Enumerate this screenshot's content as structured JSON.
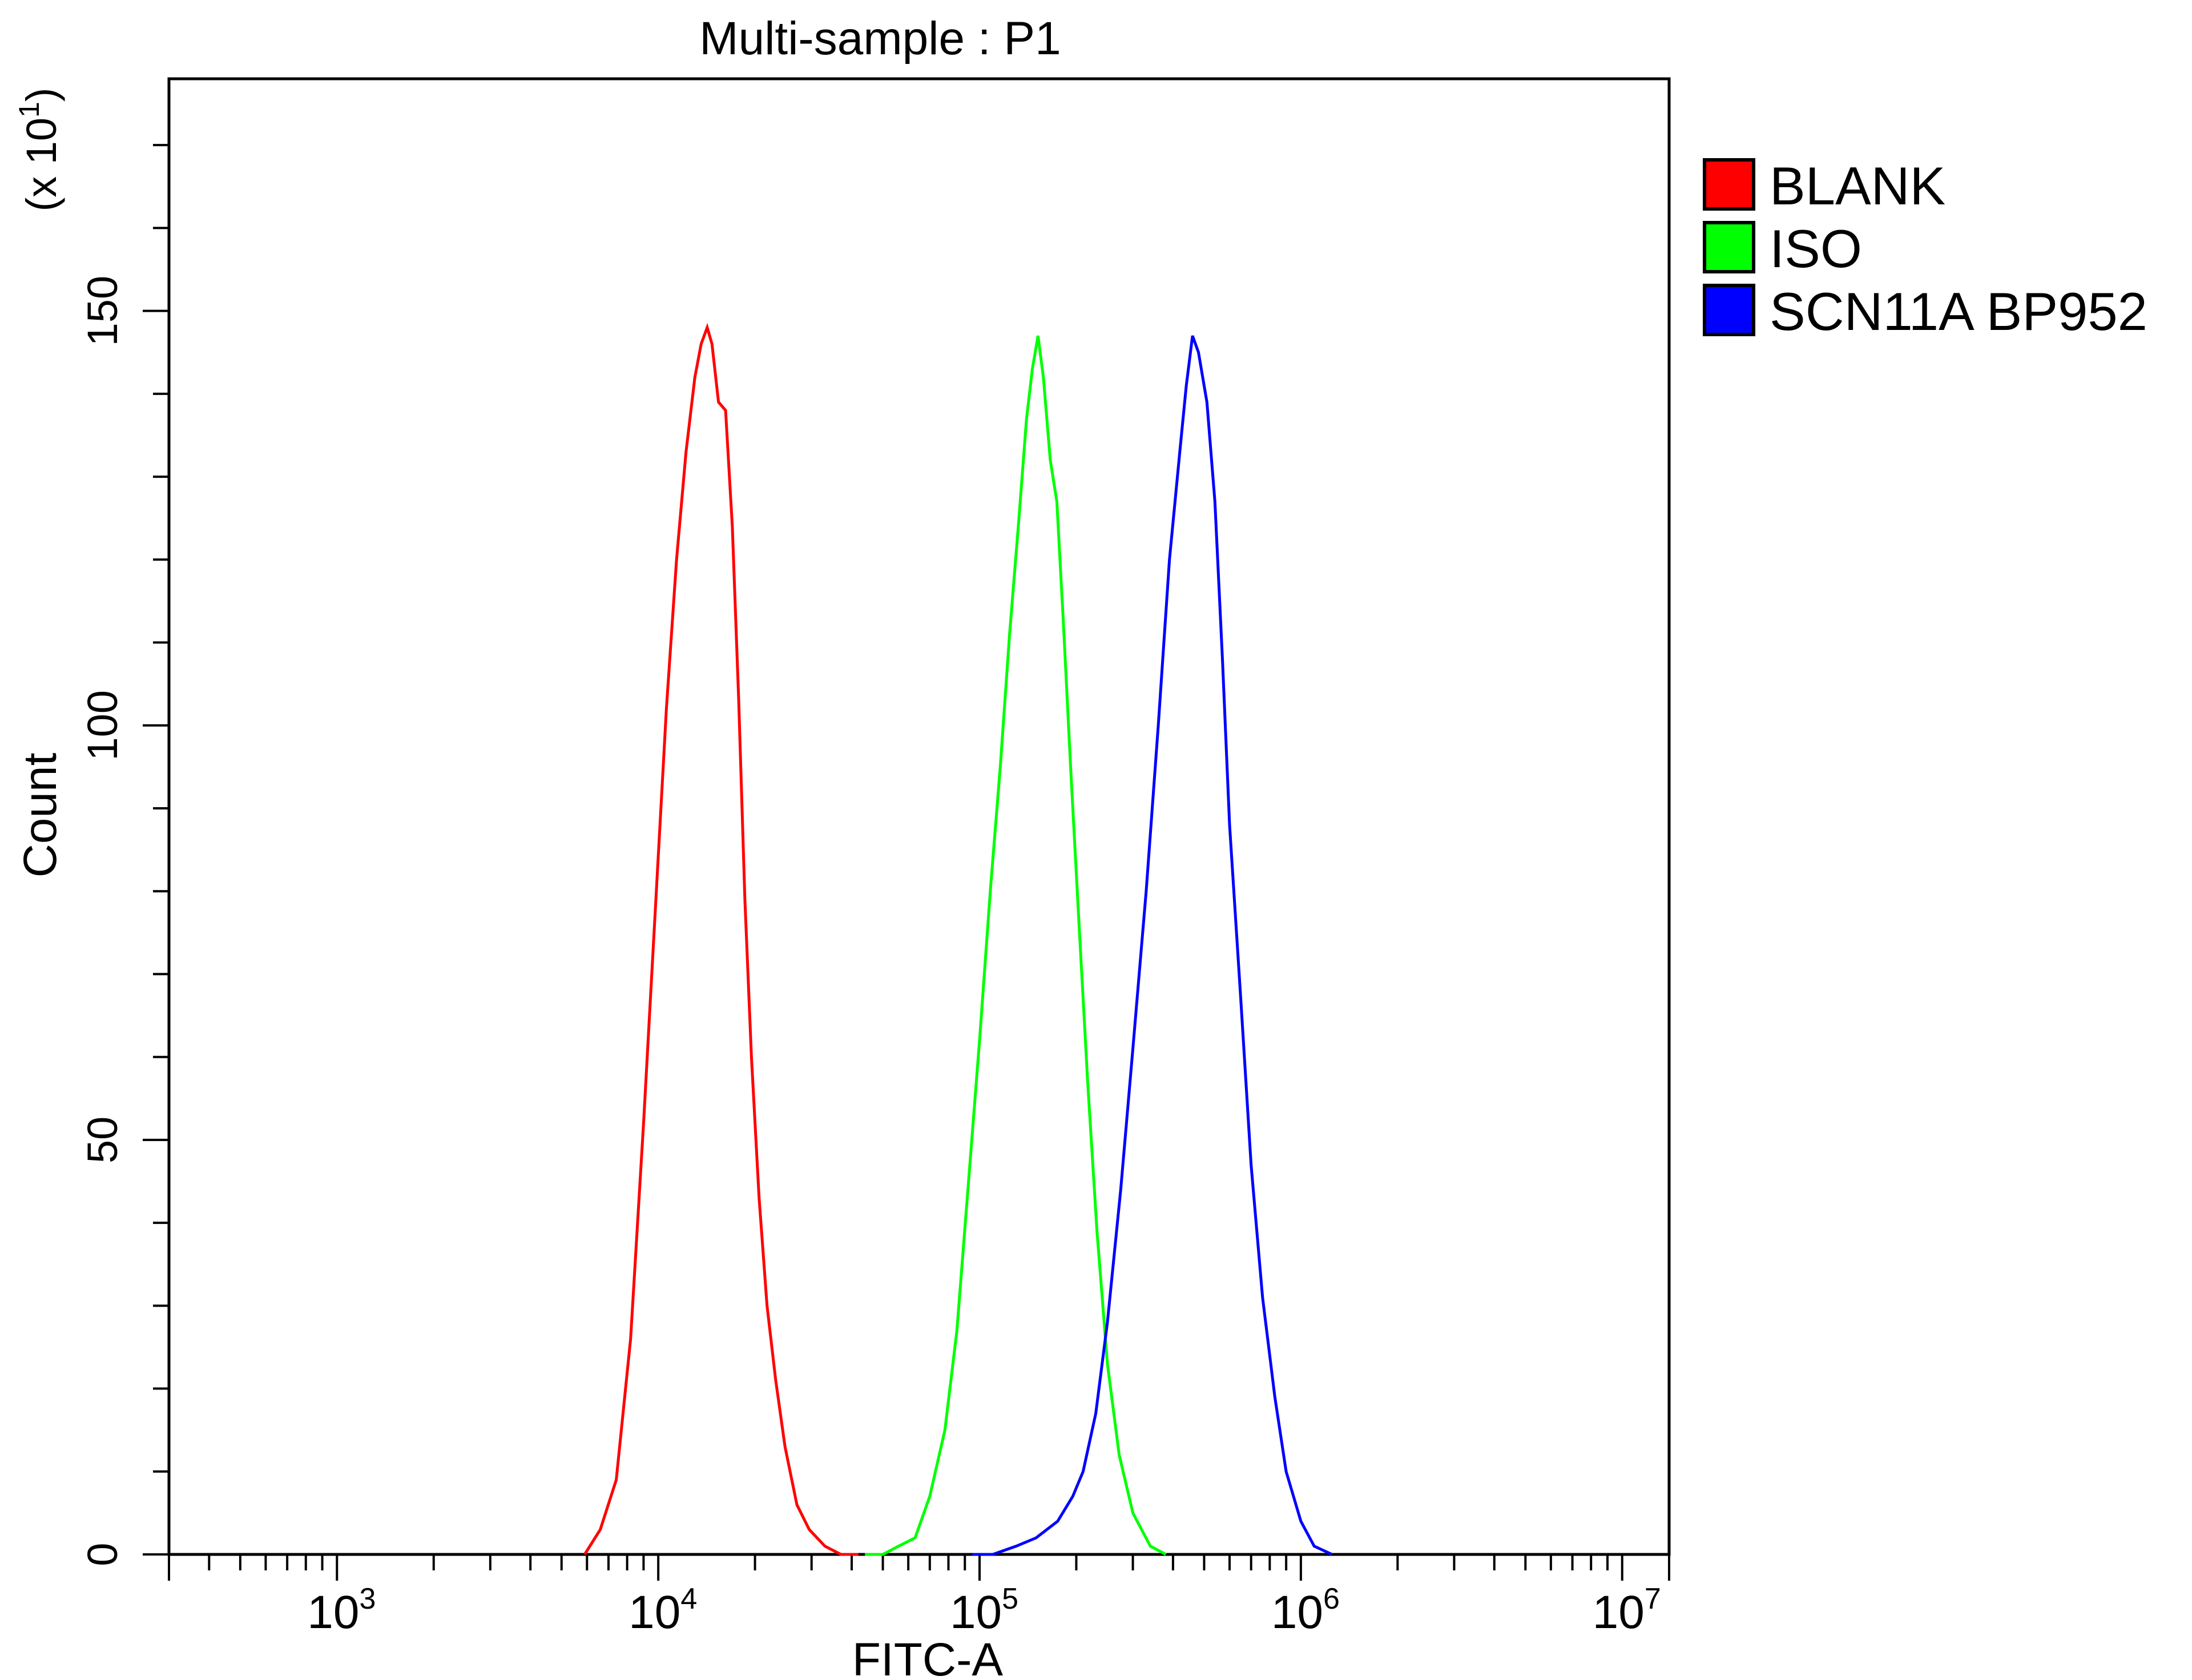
{
  "chart_data": {
    "type": "line",
    "title": "Multi-sample : P1",
    "xlabel": "FITC-A",
    "ylabel": "Count",
    "y_scale_note": {
      "prefix": "(x 10",
      "exponent": "1",
      "suffix": ")"
    },
    "x_scale": "log",
    "xlim": [
      300,
      14000000
    ],
    "ylim": [
      0,
      178
    ],
    "x_ticks": [
      {
        "base": "10",
        "exp": "3",
        "value": 1000
      },
      {
        "base": "10",
        "exp": "4",
        "value": 10000
      },
      {
        "base": "10",
        "exp": "5",
        "value": 100000
      },
      {
        "base": "10",
        "exp": "6",
        "value": 1000000
      },
      {
        "base": "10",
        "exp": "7",
        "value": 10000000
      }
    ],
    "y_ticks": [
      {
        "label": "0",
        "value": 0
      },
      {
        "label": "50",
        "value": 50
      },
      {
        "label": "100",
        "value": 100
      },
      {
        "label": "150",
        "value": 150
      }
    ],
    "grid": false,
    "legend_position": "right",
    "series": [
      {
        "name": "BLANK",
        "color": "#ff0000",
        "x": [
          5900,
          6600,
          7400,
          8200,
          9000,
          9800,
          10600,
          11400,
          12200,
          13000,
          13600,
          14200,
          14700,
          15400,
          16200,
          17000,
          17800,
          18600,
          19500,
          20600,
          21800,
          23200,
          24800,
          27000,
          29500,
          33000,
          37000,
          42000
        ],
        "y": [
          0,
          3,
          9,
          26,
          52,
          78,
          102,
          120,
          133,
          142,
          146,
          148,
          146,
          139,
          138,
          124,
          103,
          79,
          60,
          43,
          30,
          21,
          13,
          6,
          3,
          1,
          0,
          0
        ]
      },
      {
        "name": "ISO",
        "color": "#00ff00",
        "x": [
          44000,
          50000,
          56000,
          63000,
          70000,
          78000,
          85000,
          92000,
          100000,
          108000,
          116000,
          124000,
          132000,
          140000,
          146000,
          152000,
          158000,
          166000,
          174000,
          182000,
          192000,
          204000,
          217000,
          232000,
          250000,
          272000,
          300000,
          340000,
          380000
        ],
        "y": [
          0,
          0,
          1,
          2,
          7,
          15,
          27,
          44,
          62,
          80,
          95,
          111,
          124,
          137,
          143,
          147,
          142,
          132,
          127,
          113,
          95,
          76,
          57,
          39,
          23,
          12,
          5,
          1,
          0
        ]
      },
      {
        "name": "SCN11A BP952",
        "color": "#0000ff",
        "x": [
          95000,
          110000,
          130000,
          150000,
          175000,
          195000,
          210000,
          230000,
          250000,
          275000,
          300000,
          330000,
          360000,
          390000,
          420000,
          440000,
          460000,
          480000,
          510000,
          540000,
          570000,
          600000,
          650000,
          700000,
          760000,
          830000,
          900000,
          1000000,
          1100000,
          1250000
        ],
        "y": [
          0,
          0,
          1,
          2,
          4,
          7,
          10,
          17,
          28,
          44,
          61,
          80,
          100,
          120,
          133,
          141,
          147,
          145,
          139,
          127,
          108,
          88,
          67,
          47,
          31,
          19,
          10,
          4,
          1,
          0
        ]
      }
    ]
  }
}
